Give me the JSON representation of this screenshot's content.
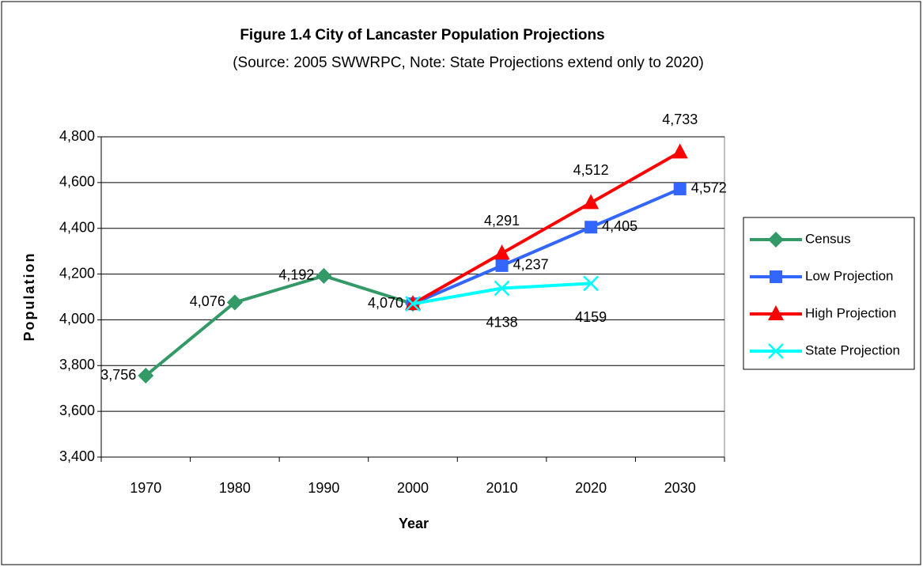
{
  "chart_data": {
    "type": "line",
    "title": "Figure 1.4 City of Lancaster Population Projections",
    "subtitle": "(Source:  2005 SWWRPC, Note:  State Projections extend only to 2020)",
    "x_label": "Year",
    "y_label": "Population",
    "categories": [
      "1970",
      "1980",
      "1990",
      "2000",
      "2010",
      "2020",
      "2030"
    ],
    "series": [
      {
        "name": "Census",
        "color": "#339966",
        "marker": "diamond",
        "values": [
          3756,
          4076,
          4192,
          4070,
          null,
          null,
          null
        ],
        "value_labels": [
          "3,756",
          "4,076",
          "4,192",
          "4,070",
          null,
          null,
          null
        ]
      },
      {
        "name": "Low Projection",
        "color": "#3366ff",
        "marker": "square",
        "values": [
          null,
          null,
          null,
          4070,
          4237,
          4405,
          4572
        ],
        "value_labels": [
          null,
          null,
          null,
          null,
          "4,237",
          "4,405",
          "4,572"
        ]
      },
      {
        "name": "High Projection",
        "color": "#ff0000",
        "marker": "triangle",
        "values": [
          null,
          null,
          null,
          4070,
          4291,
          4512,
          4733
        ],
        "value_labels": [
          null,
          null,
          null,
          null,
          "4,291",
          "4,512",
          "4,733"
        ]
      },
      {
        "name": "State Projection",
        "color": "#00ffff",
        "marker": "x",
        "values": [
          null,
          null,
          null,
          4070,
          4138,
          4159,
          null
        ],
        "value_labels": [
          null,
          null,
          null,
          null,
          "4138",
          "4159",
          null
        ]
      }
    ],
    "ylim": [
      3400,
      4800
    ],
    "yticks": [
      {
        "value": 3400,
        "label": "3,400"
      },
      {
        "value": 3600,
        "label": "3,600"
      },
      {
        "value": 3800,
        "label": "3,800"
      },
      {
        "value": 4000,
        "label": "4,000"
      },
      {
        "value": 4200,
        "label": "4,200"
      },
      {
        "value": 4400,
        "label": "4,400"
      },
      {
        "value": 4600,
        "label": "4,600"
      },
      {
        "value": 4800,
        "label": "4,800"
      }
    ],
    "grid": true,
    "legend": "right"
  }
}
